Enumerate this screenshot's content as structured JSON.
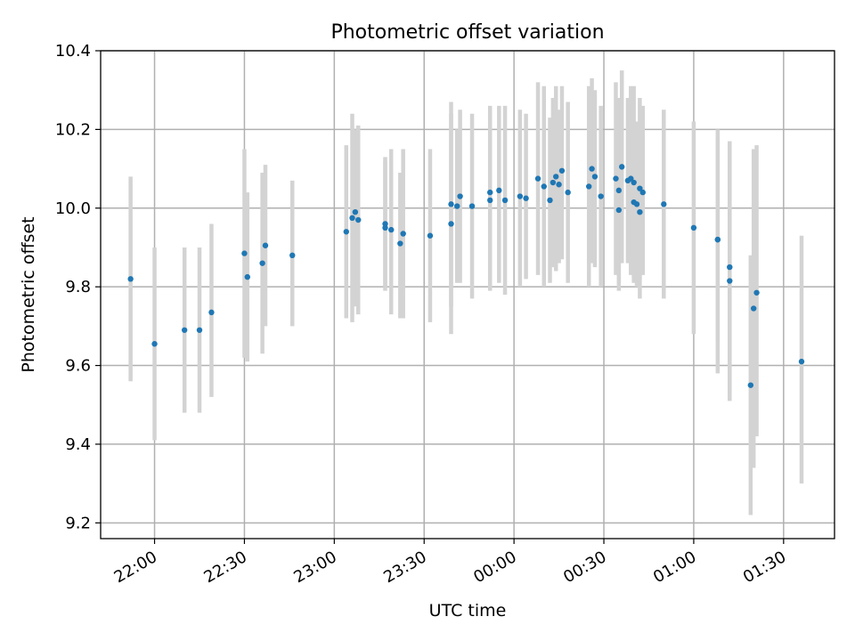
{
  "chart_data": {
    "type": "scatter",
    "title": "Photometric offset variation",
    "xlabel": "UTC time",
    "ylabel": "Photometric offset",
    "x_unit": "UTC time (HH:MM, night spanning midnight)",
    "xlim": [
      "21:42",
      "01:47"
    ],
    "ylim": [
      9.16,
      10.4
    ],
    "xticks": [
      "22:00",
      "22:30",
      "23:00",
      "23:30",
      "00:00",
      "00:30",
      "01:00",
      "01:30"
    ],
    "yticks": [
      "9.2",
      "9.4",
      "9.6",
      "9.8",
      "10.0",
      "10.2",
      "10.4"
    ],
    "grid": true,
    "colors": {
      "point": "#1f77b4",
      "errorbar": "#d3d3d3",
      "grid": "#b0b0b0"
    },
    "points": [
      {
        "x": "21:52",
        "y": 9.82,
        "lo": 9.56,
        "hi": 10.08
      },
      {
        "x": "22:00",
        "y": 9.655,
        "lo": 9.41,
        "hi": 9.9
      },
      {
        "x": "22:10",
        "y": 9.69,
        "lo": 9.48,
        "hi": 9.9
      },
      {
        "x": "22:15",
        "y": 9.69,
        "lo": 9.48,
        "hi": 9.9
      },
      {
        "x": "22:19",
        "y": 9.735,
        "lo": 9.52,
        "hi": 9.96
      },
      {
        "x": "22:30",
        "y": 9.885,
        "lo": 9.62,
        "hi": 10.15
      },
      {
        "x": "22:31",
        "y": 9.825,
        "lo": 9.61,
        "hi": 10.04
      },
      {
        "x": "22:36",
        "y": 9.86,
        "lo": 9.63,
        "hi": 10.09
      },
      {
        "x": "22:37",
        "y": 9.905,
        "lo": 9.7,
        "hi": 10.11
      },
      {
        "x": "22:46",
        "y": 9.88,
        "lo": 9.7,
        "hi": 10.07
      },
      {
        "x": "23:04",
        "y": 9.94,
        "lo": 9.72,
        "hi": 10.16
      },
      {
        "x": "23:06",
        "y": 9.975,
        "lo": 9.71,
        "hi": 10.24
      },
      {
        "x": "23:07",
        "y": 9.99,
        "lo": 9.75,
        "hi": 10.2
      },
      {
        "x": "23:08",
        "y": 9.97,
        "lo": 9.73,
        "hi": 10.21
      },
      {
        "x": "23:17",
        "y": 9.96,
        "lo": 9.79,
        "hi": 10.13
      },
      {
        "x": "23:17",
        "y": 9.95,
        "lo": 9.8,
        "hi": 10.12
      },
      {
        "x": "23:19",
        "y": 9.945,
        "lo": 9.73,
        "hi": 10.15
      },
      {
        "x": "23:22",
        "y": 9.91,
        "lo": 9.72,
        "hi": 10.09
      },
      {
        "x": "23:23",
        "y": 9.935,
        "lo": 9.72,
        "hi": 10.15
      },
      {
        "x": "23:32",
        "y": 9.93,
        "lo": 9.71,
        "hi": 10.15
      },
      {
        "x": "23:39",
        "y": 9.96,
        "lo": 9.68,
        "hi": 10.24
      },
      {
        "x": "23:39",
        "y": 10.01,
        "lo": 9.75,
        "hi": 10.27
      },
      {
        "x": "23:41",
        "y": 10.005,
        "lo": 9.81,
        "hi": 10.2
      },
      {
        "x": "23:42",
        "y": 10.03,
        "lo": 9.81,
        "hi": 10.25
      },
      {
        "x": "23:46",
        "y": 10.005,
        "lo": 9.77,
        "hi": 10.24
      },
      {
        "x": "23:52",
        "y": 10.04,
        "lo": 9.79,
        "hi": 10.26
      },
      {
        "x": "23:52",
        "y": 10.02,
        "lo": 9.8,
        "hi": 10.25
      },
      {
        "x": "23:55",
        "y": 10.045,
        "lo": 9.81,
        "hi": 10.26
      },
      {
        "x": "23:57",
        "y": 10.02,
        "lo": 9.78,
        "hi": 10.26
      },
      {
        "x": "00:02",
        "y": 10.03,
        "lo": 9.8,
        "hi": 10.25
      },
      {
        "x": "00:04",
        "y": 10.025,
        "lo": 9.82,
        "hi": 10.24
      },
      {
        "x": "00:08",
        "y": 10.075,
        "lo": 9.83,
        "hi": 10.32
      },
      {
        "x": "00:10",
        "y": 10.055,
        "lo": 9.8,
        "hi": 10.31
      },
      {
        "x": "00:12",
        "y": 10.02,
        "lo": 9.81,
        "hi": 10.23
      },
      {
        "x": "00:13",
        "y": 10.065,
        "lo": 9.85,
        "hi": 10.28
      },
      {
        "x": "00:14",
        "y": 10.08,
        "lo": 9.84,
        "hi": 10.31
      },
      {
        "x": "00:15",
        "y": 10.06,
        "lo": 9.86,
        "hi": 10.25
      },
      {
        "x": "00:16",
        "y": 10.095,
        "lo": 9.87,
        "hi": 10.31
      },
      {
        "x": "00:18",
        "y": 10.04,
        "lo": 9.81,
        "hi": 10.27
      },
      {
        "x": "00:25",
        "y": 10.055,
        "lo": 9.8,
        "hi": 10.31
      },
      {
        "x": "00:26",
        "y": 10.1,
        "lo": 9.86,
        "hi": 10.33
      },
      {
        "x": "00:27",
        "y": 10.08,
        "lo": 9.85,
        "hi": 10.3
      },
      {
        "x": "00:29",
        "y": 10.03,
        "lo": 9.8,
        "hi": 10.26
      },
      {
        "x": "00:34",
        "y": 10.075,
        "lo": 9.83,
        "hi": 10.32
      },
      {
        "x": "00:35",
        "y": 9.995,
        "lo": 9.79,
        "hi": 10.2
      },
      {
        "x": "00:35",
        "y": 10.045,
        "lo": 9.81,
        "hi": 10.28
      },
      {
        "x": "00:36",
        "y": 10.105,
        "lo": 9.86,
        "hi": 10.35
      },
      {
        "x": "00:38",
        "y": 10.07,
        "lo": 9.86,
        "hi": 10.28
      },
      {
        "x": "00:39",
        "y": 10.075,
        "lo": 9.83,
        "hi": 10.31
      },
      {
        "x": "00:40",
        "y": 10.065,
        "lo": 9.82,
        "hi": 10.31
      },
      {
        "x": "00:40",
        "y": 10.015,
        "lo": 9.81,
        "hi": 10.22
      },
      {
        "x": "00:41",
        "y": 10.01,
        "lo": 9.8,
        "hi": 10.22
      },
      {
        "x": "00:42",
        "y": 9.99,
        "lo": 9.77,
        "hi": 10.21
      },
      {
        "x": "00:42",
        "y": 10.05,
        "lo": 9.82,
        "hi": 10.28
      },
      {
        "x": "00:43",
        "y": 10.04,
        "lo": 9.83,
        "hi": 10.26
      },
      {
        "x": "00:50",
        "y": 10.01,
        "lo": 9.77,
        "hi": 10.25
      },
      {
        "x": "01:00",
        "y": 9.95,
        "lo": 9.68,
        "hi": 10.22
      },
      {
        "x": "01:08",
        "y": 9.92,
        "lo": 9.66,
        "hi": 10.18
      },
      {
        "x": "01:08",
        "y": 9.92,
        "lo": 9.58,
        "hi": 10.2
      },
      {
        "x": "01:12",
        "y": 9.85,
        "lo": 9.53,
        "hi": 10.17
      },
      {
        "x": "01:12",
        "y": 9.815,
        "lo": 9.51,
        "hi": 10.12
      },
      {
        "x": "01:19",
        "y": 9.55,
        "lo": 9.22,
        "hi": 9.88
      },
      {
        "x": "01:20",
        "y": 9.745,
        "lo": 9.34,
        "hi": 10.15
      },
      {
        "x": "01:21",
        "y": 9.785,
        "lo": 9.42,
        "hi": 10.16
      },
      {
        "x": "01:36",
        "y": 9.61,
        "lo": 9.3,
        "hi": 9.93
      }
    ]
  }
}
